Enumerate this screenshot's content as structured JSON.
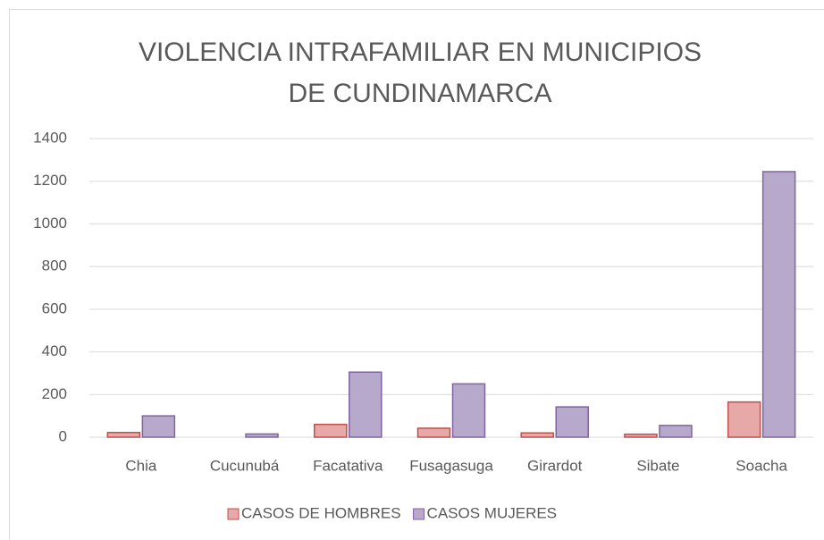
{
  "chart_data": {
    "type": "bar",
    "title": "VIOLENCIA INTRAFAMILIAR EN MUNICIPIOS DE CUNDINAMARCA",
    "categories": [
      "Chia",
      "Cucunubá",
      "Facatativa",
      "Fusagasuga",
      "Girardot",
      "Sibate",
      "Soacha"
    ],
    "series": [
      {
        "name": "CASOS DE HOMBRES",
        "color": "#e6a9a7",
        "stroke": "#c0504d",
        "values": [
          22,
          0,
          60,
          42,
          20,
          14,
          165
        ]
      },
      {
        "name": "CASOS MUJERES",
        "color": "#b7a9cc",
        "stroke": "#8064a2",
        "values": [
          100,
          15,
          305,
          250,
          142,
          55,
          1245
        ]
      }
    ],
    "ylim": [
      0,
      1400
    ],
    "yticks": [
      0,
      200,
      400,
      600,
      800,
      1000,
      1200,
      1400
    ],
    "grid": true,
    "legend": "bottom"
  }
}
